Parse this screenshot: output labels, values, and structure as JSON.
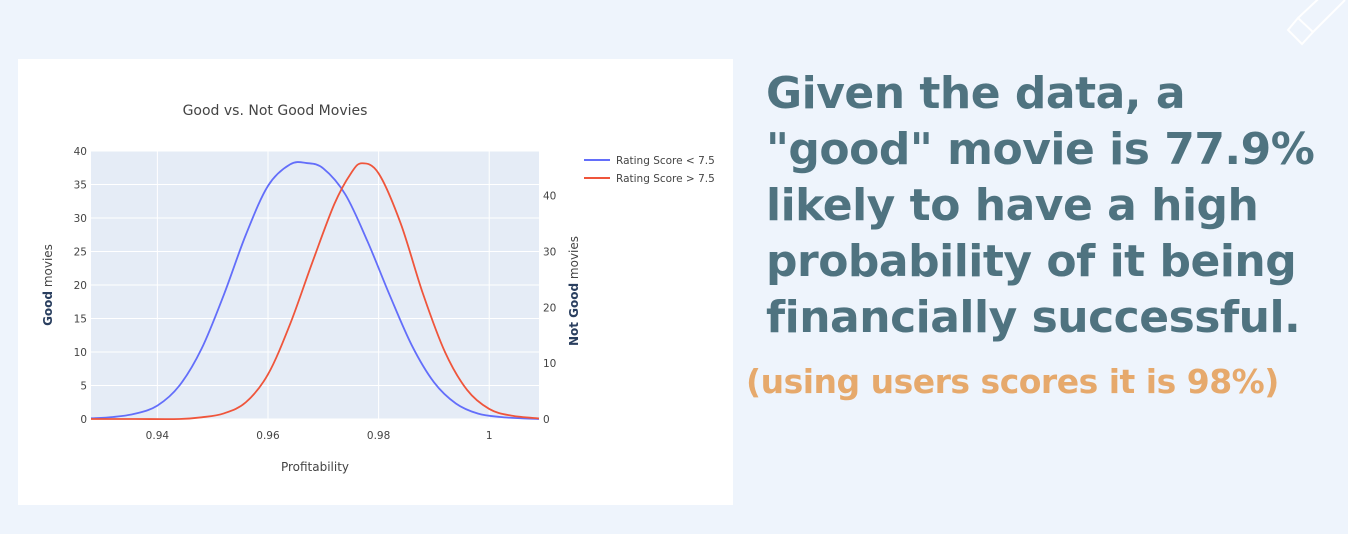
{
  "headline": "Given the data, a \"good\" movie is 77.9% likely to have a high probability of it being financially successful.",
  "note": "(using users scores it is 98%)",
  "chart_data": {
    "type": "line",
    "title": "Good vs. Not Good Movies",
    "xlabel": "Profitability",
    "ylabel_left": {
      "bold": "Good",
      "rest": " movies"
    },
    "ylabel_right": {
      "bold": "Not Good",
      "rest": " movies"
    },
    "xlim": [
      0.928,
      1.009
    ],
    "ylim_left": [
      0,
      40
    ],
    "ylim_right": [
      0,
      48
    ],
    "x_ticks": [
      0.94,
      0.96,
      0.98,
      1
    ],
    "x_tick_labels": [
      "0.94",
      "0.96",
      "0.98",
      "1"
    ],
    "y_left_ticks": [
      0,
      5,
      10,
      15,
      20,
      25,
      30,
      35,
      40
    ],
    "y_right_ticks": [
      0,
      10,
      20,
      30,
      40
    ],
    "grid": true,
    "legend_position": "top-right",
    "series": [
      {
        "name": "Rating Score < 7.5",
        "color": "#636efa",
        "axis": "left",
        "x": [
          0.928,
          0.932,
          0.936,
          0.94,
          0.944,
          0.948,
          0.952,
          0.956,
          0.96,
          0.964,
          0.967,
          0.97,
          0.974,
          0.978,
          0.982,
          0.986,
          0.99,
          0.994,
          0.998,
          1.002,
          1.006,
          1.009
        ],
        "y": [
          0.1,
          0.3,
          0.8,
          2,
          5,
          10.5,
          18.5,
          27.5,
          34.8,
          38,
          38.2,
          37.4,
          33.5,
          26.5,
          18.5,
          11,
          5.5,
          2.3,
          0.8,
          0.3,
          0.1,
          0
        ]
      },
      {
        "name": "Rating Score > 7.5",
        "color": "#ef553b",
        "axis": "right",
        "x": [
          0.928,
          0.936,
          0.944,
          0.948,
          0.952,
          0.956,
          0.96,
          0.964,
          0.968,
          0.972,
          0.975,
          0.977,
          0.98,
          0.984,
          0.988,
          0.992,
          0.996,
          1,
          1.004,
          1.009
        ],
        "y": [
          0,
          0,
          0,
          0.3,
          1,
          3,
          8,
          17,
          28,
          38.5,
          44,
          45.8,
          44,
          35,
          22.5,
          12,
          5.2,
          1.8,
          0.6,
          0.1
        ]
      }
    ]
  }
}
